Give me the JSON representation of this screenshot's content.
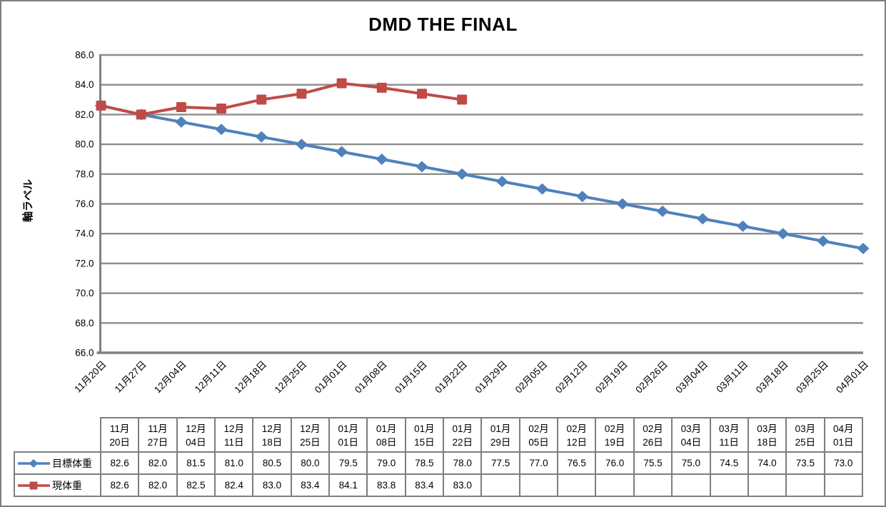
{
  "window": {
    "bg": "#FFFFFF",
    "border_color": "#7F7F7F"
  },
  "chart": {
    "title": "DMD THE FINAL",
    "y_axis_title": "軸ラベル",
    "colors": {
      "target_series": "#4F81BD",
      "current_series": "#BF4B47",
      "gridline": "#8C8C8C",
      "axis": "#808080",
      "text": "#000000",
      "table_border": "#7E7E7E"
    }
  },
  "chart_data": {
    "type": "line",
    "title": "DMD THE FINAL",
    "ylabel": "軸ラベル",
    "xlabel": "",
    "ylim": [
      66.0,
      86.0
    ],
    "y_tick_step": 2.0,
    "grid": true,
    "legend_position": "data-table-left",
    "categories": [
      "11月20日",
      "11月27日",
      "12月04日",
      "12月11日",
      "12月18日",
      "12月25日",
      "01月01日",
      "01月08日",
      "01月15日",
      "01月22日",
      "01月29日",
      "02月05日",
      "02月12日",
      "02月19日",
      "02月26日",
      "03月04日",
      "03月11日",
      "03月18日",
      "03月25日",
      "04月01日"
    ],
    "series": [
      {
        "name": "目標体重",
        "color": "#4F81BD",
        "marker": "diamond",
        "values": [
          82.6,
          82.0,
          81.5,
          81.0,
          80.5,
          80.0,
          79.5,
          79.0,
          78.5,
          78.0,
          77.5,
          77.0,
          76.5,
          76.0,
          75.5,
          75.0,
          74.5,
          74.0,
          73.5,
          73.0
        ]
      },
      {
        "name": "現体重",
        "color": "#BF4B47",
        "marker": "square",
        "values": [
          82.6,
          82.0,
          82.5,
          82.4,
          83.0,
          83.4,
          84.1,
          83.8,
          83.4,
          83.0,
          null,
          null,
          null,
          null,
          null,
          null,
          null,
          null,
          null,
          null
        ]
      }
    ]
  }
}
